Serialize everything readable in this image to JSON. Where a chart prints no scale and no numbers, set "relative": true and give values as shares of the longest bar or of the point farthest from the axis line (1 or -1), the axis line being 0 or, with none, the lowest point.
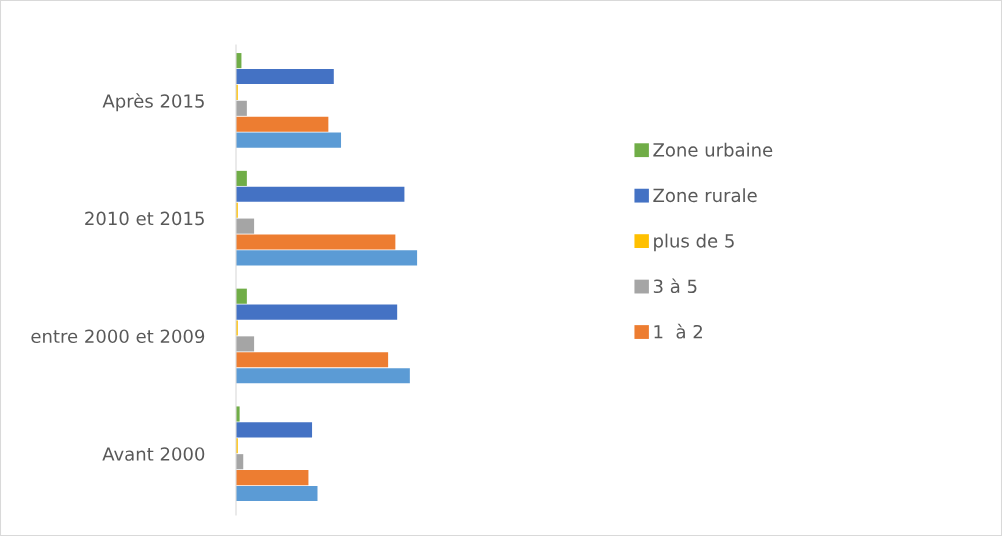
{
  "chart_data": {
    "type": "bar",
    "orientation": "horizontal",
    "relative": true,
    "legend": "right",
    "grid": false,
    "categories": [
      "Après 2015",
      "2010 et 2015",
      "entre 2000 et 2009",
      "Avant 2000"
    ],
    "series": [
      {
        "name": "Zone urbaine",
        "color": "#70ad47",
        "values": [
          0.03,
          0.06,
          0.06,
          0.02
        ]
      },
      {
        "name": "Zone rurale",
        "color": "#4472c4",
        "values": [
          0.54,
          0.93,
          0.89,
          0.42
        ]
      },
      {
        "name": "plus de 5",
        "color": "#ffc000",
        "values": [
          0.01,
          0.01,
          0.01,
          0.01
        ]
      },
      {
        "name": "3 à 5",
        "color": "#a5a5a5",
        "values": [
          0.06,
          0.1,
          0.1,
          0.04
        ]
      },
      {
        "name": "1  à 2",
        "color": "#ed7d31",
        "values": [
          0.51,
          0.88,
          0.84,
          0.4
        ]
      },
      {
        "color": "#5b9bd5",
        "values": [
          0.58,
          1.0,
          0.96,
          0.45
        ]
      }
    ]
  }
}
